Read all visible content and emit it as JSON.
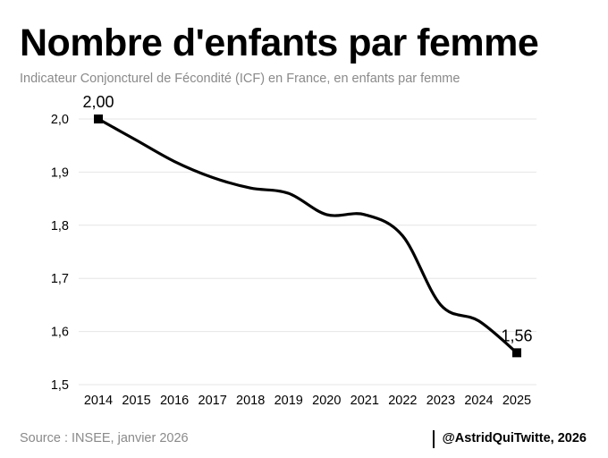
{
  "title": "Nombre d'enfants par femme",
  "subtitle": "Indicateur Conjoncturel de Fécondité (ICF) en France, en enfants par femme",
  "source": "Source : INSEE, janvier 2026",
  "credit": "@AstridQuiTwitte, 2026",
  "chart_data": {
    "type": "line",
    "title": "Nombre d'enfants par femme",
    "subtitle": "Indicateur Conjoncturel de Fécondité (ICF) en France, en enfants par femme",
    "xlabel": "",
    "ylabel": "",
    "categories": [
      "2014",
      "2015",
      "2016",
      "2017",
      "2018",
      "2019",
      "2020",
      "2021",
      "2022",
      "2023",
      "2024",
      "2025"
    ],
    "series": [
      {
        "values": [
          2.0,
          1.96,
          1.92,
          1.89,
          1.87,
          1.86,
          1.82,
          1.82,
          1.78,
          1.65,
          1.62,
          1.56
        ]
      }
    ],
    "ylim": [
      1.5,
      2.0
    ],
    "yticks": [
      "2,0",
      "1,9",
      "1,8",
      "1,7",
      "1,6",
      "1,5"
    ],
    "ytick_values": [
      2.0,
      1.9,
      1.8,
      1.7,
      1.6,
      1.5
    ],
    "annotations": [
      {
        "x": "2014",
        "value": 2.0,
        "label": "2,00"
      },
      {
        "x": "2025",
        "value": 1.56,
        "label": "1,56"
      }
    ],
    "grid": true,
    "line_color": "#000000",
    "grid_color": "#e6e6e6"
  }
}
